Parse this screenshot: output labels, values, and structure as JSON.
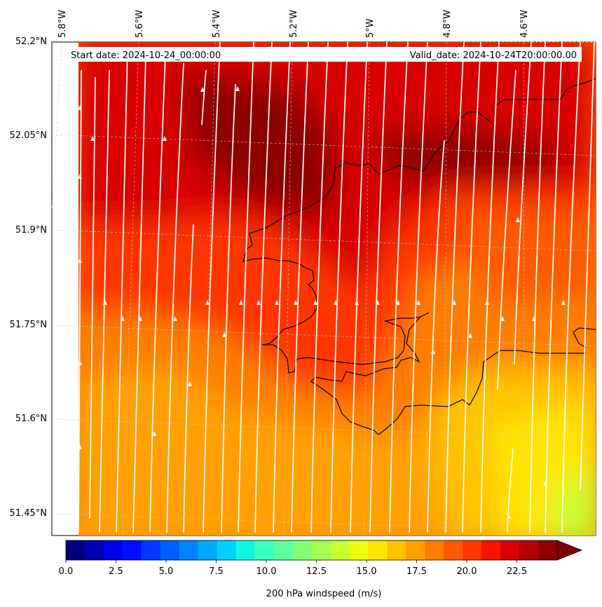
{
  "header": {
    "start_label": "Start date: 2024-10-24_00:00:00",
    "valid_label": "Valid_date: 2024-10-24T20:00:00.00"
  },
  "axes": {
    "lon_labels": [
      "5.8°W",
      "5.6°W",
      "5.4°W",
      "5.2°W",
      "5°W",
      "4.8°W",
      "4.6°W"
    ],
    "lat_labels": [
      "52.2°N",
      "52.05°N",
      "51.9°N",
      "51.75°N",
      "51.6°N",
      "51.45°N"
    ]
  },
  "colorbar": {
    "label": "200 hPa windspeed (m/s)",
    "ticks": [
      "0.0",
      "2.5",
      "5.0",
      "7.5",
      "10.0",
      "12.5",
      "15.0",
      "17.5",
      "20.0",
      "22.5"
    ],
    "colors": [
      "#00007f",
      "#0000b0",
      "#0000e6",
      "#0010ff",
      "#0038ff",
      "#0060ff",
      "#0084ff",
      "#00a8ff",
      "#00d0ff",
      "#13f5e3",
      "#3affbd",
      "#5dff9a",
      "#80ff77",
      "#a3ff53",
      "#c7ff30",
      "#ecff0a",
      "#ffe600",
      "#ffc300",
      "#ffa000",
      "#ff7d00",
      "#ff5a00",
      "#ff3600",
      "#f71300",
      "#d80000",
      "#b30000",
      "#8e0000"
    ],
    "extend_color": "#7f0000"
  },
  "map": {
    "field_colors": {
      "dark_core": "#8e0000",
      "strong": "#d80000",
      "high": "#ff3600",
      "mid": "#ff7d00",
      "orange": "#ffa000",
      "low": "#ffc300",
      "yellow": "#ffe600",
      "lime": "#c7ff30"
    },
    "coastline_color": "#000000",
    "streamline_color": "#ffffff"
  }
}
